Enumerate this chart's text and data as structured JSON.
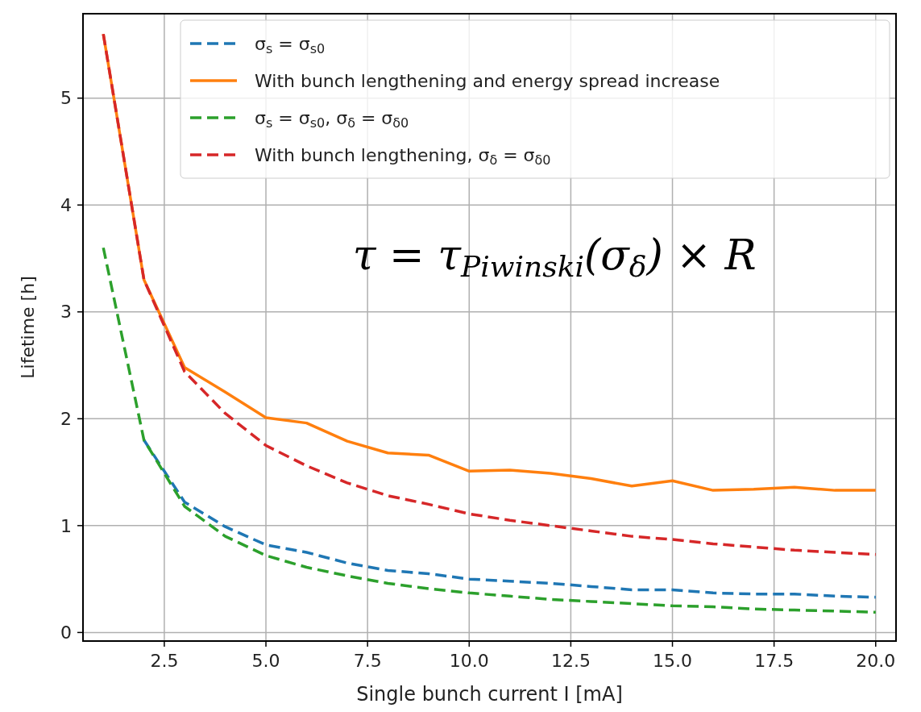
{
  "chart_data": {
    "type": "line",
    "xlabel": "Single bunch current I [mA]",
    "ylabel": "Lifetime [h]",
    "x": [
      1,
      2,
      3,
      4,
      5,
      6,
      7,
      8,
      9,
      10,
      11,
      12,
      13,
      14,
      15,
      16,
      17,
      18,
      19,
      20
    ],
    "xlim": [
      0.5,
      20.5
    ],
    "xticks": [
      {
        "value": 2.5,
        "label": "2.5"
      },
      {
        "value": 5,
        "label": "5.0"
      },
      {
        "value": 7.5,
        "label": "7.5"
      },
      {
        "value": 10,
        "label": "10.0"
      },
      {
        "value": 12.5,
        "label": "12.5"
      },
      {
        "value": 15,
        "label": "15.0"
      },
      {
        "value": 17.5,
        "label": "17.5"
      },
      {
        "value": 20,
        "label": "20.0"
      }
    ],
    "ylim": [
      -0.08,
      5.79
    ],
    "yticks": [
      0,
      1,
      2,
      3,
      4,
      5
    ],
    "grid": true,
    "legend": "top right",
    "annotations": [
      "τ = τ$_{Piwinski}$(σ$_{δ}$) × R"
    ],
    "series": [
      {
        "name": "σ$_{s}$ = σ$_{s0}$",
        "color": "#1f77b4",
        "line_style": "dashed",
        "values": [
          null,
          1.8,
          1.22,
          0.99,
          0.82,
          0.75,
          0.65,
          0.58,
          0.55,
          0.5,
          0.48,
          0.46,
          0.43,
          0.4,
          0.4,
          0.37,
          0.36,
          0.36,
          0.34,
          0.33
        ]
      },
      {
        "name": "With bunch lengthening and energy spread increase",
        "color": "#ff7f0e",
        "line_style": "solid",
        "values": [
          5.6,
          3.3,
          2.48,
          2.25,
          2.01,
          1.96,
          1.79,
          1.68,
          1.66,
          1.51,
          1.52,
          1.49,
          1.44,
          1.37,
          1.42,
          1.33,
          1.34,
          1.36,
          1.33,
          1.33
        ]
      },
      {
        "name": "σ$_{s}$ = σ$_{s0}$, σ$_{δ}$ = σ$_{δ0}$",
        "color": "#2ca02c",
        "line_style": "dashed",
        "values": [
          3.6,
          1.8,
          1.18,
          0.9,
          0.72,
          0.61,
          0.53,
          0.46,
          0.41,
          0.37,
          0.34,
          0.31,
          0.29,
          0.27,
          0.25,
          0.24,
          0.22,
          0.21,
          0.2,
          0.19
        ]
      },
      {
        "name": "With bunch lengthening, σ$_{δ}$ = σ$_{δ0}$",
        "color": "#d62728",
        "line_style": "dashed",
        "values": [
          5.6,
          3.3,
          2.44,
          2.05,
          1.75,
          1.56,
          1.4,
          1.28,
          1.2,
          1.11,
          1.05,
          1.0,
          0.95,
          0.9,
          0.87,
          0.83,
          0.8,
          0.77,
          0.75,
          0.73
        ]
      }
    ]
  }
}
